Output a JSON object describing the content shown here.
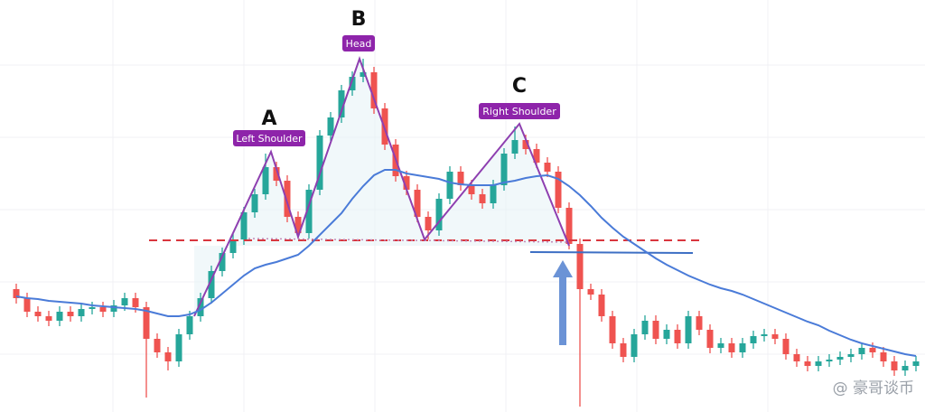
{
  "chart_data": {
    "type": "candlestick",
    "open": [
      136,
      126,
      111,
      106,
      101,
      111,
      106,
      114,
      116,
      111,
      118,
      126,
      116,
      81,
      66,
      56,
      86,
      106,
      126,
      156,
      176,
      191,
      221,
      241,
      271,
      256,
      216,
      198,
      246,
      306,
      326,
      356,
      371,
      376,
      336,
      296,
      261,
      246,
      216,
      201,
      236,
      266,
      251,
      241,
      231,
      251,
      286,
      301,
      291,
      276,
      266,
      226,
      186,
      136,
      130,
      106,
      76,
      61,
      86,
      101,
      81,
      91,
      76,
      106,
      91,
      71,
      76,
      66,
      76,
      84,
      86,
      81,
      64,
      56,
      51,
      56,
      58,
      61,
      64,
      71,
      66,
      56,
      46,
      51
    ],
    "high": [
      142,
      132,
      117,
      112,
      117,
      117,
      120,
      122,
      122,
      124,
      132,
      132,
      122,
      87,
      72,
      92,
      112,
      132,
      162,
      182,
      197,
      227,
      247,
      286,
      277,
      262,
      222,
      252,
      312,
      332,
      362,
      377,
      391,
      382,
      342,
      302,
      267,
      252,
      222,
      242,
      272,
      272,
      257,
      247,
      257,
      292,
      316,
      307,
      297,
      282,
      272,
      232,
      192,
      142,
      136,
      112,
      82,
      92,
      107,
      107,
      97,
      97,
      112,
      112,
      97,
      82,
      82,
      82,
      90,
      92,
      92,
      87,
      70,
      62,
      62,
      64,
      67,
      70,
      77,
      77,
      72,
      62,
      57,
      62
    ],
    "low": [
      120,
      105,
      100,
      95,
      95,
      100,
      100,
      108,
      105,
      105,
      112,
      110,
      16,
      60,
      46,
      50,
      80,
      100,
      120,
      150,
      170,
      185,
      215,
      235,
      250,
      210,
      192,
      192,
      240,
      300,
      320,
      350,
      365,
      330,
      290,
      255,
      240,
      210,
      191,
      195,
      230,
      245,
      235,
      225,
      225,
      245,
      280,
      285,
      270,
      260,
      220,
      180,
      6,
      124,
      100,
      70,
      55,
      55,
      80,
      75,
      75,
      70,
      70,
      85,
      65,
      65,
      60,
      60,
      70,
      78,
      75,
      58,
      50,
      45,
      45,
      50,
      52,
      55,
      58,
      60,
      50,
      40,
      40,
      45
    ],
    "close": [
      126,
      111,
      106,
      101,
      111,
      106,
      114,
      116,
      111,
      118,
      126,
      116,
      81,
      66,
      56,
      86,
      106,
      126,
      156,
      176,
      191,
      221,
      241,
      271,
      256,
      216,
      198,
      246,
      306,
      326,
      356,
      371,
      376,
      336,
      296,
      261,
      246,
      216,
      201,
      236,
      266,
      251,
      241,
      231,
      251,
      286,
      301,
      291,
      276,
      266,
      226,
      186,
      136,
      130,
      106,
      76,
      61,
      86,
      101,
      81,
      91,
      76,
      106,
      91,
      71,
      76,
      66,
      76,
      84,
      86,
      81,
      64,
      56,
      51,
      56,
      58,
      61,
      64,
      71,
      66,
      56,
      46,
      51,
      56
    ],
    "moving_average": {
      "color": "#4a7bd8",
      "values": [
        128,
        126,
        125,
        123,
        122,
        121,
        120,
        118,
        117,
        116,
        115,
        114,
        112,
        109,
        106,
        106,
        108,
        113,
        121,
        131,
        141,
        151,
        159,
        163,
        166,
        170,
        174,
        184,
        196,
        208,
        220,
        236,
        250,
        262,
        268,
        268,
        264,
        262,
        260,
        258,
        254,
        252,
        251,
        251,
        251,
        254,
        256,
        259,
        261,
        262,
        258,
        250,
        240,
        228,
        215,
        204,
        194,
        186,
        178,
        170,
        163,
        157,
        151,
        146,
        141,
        137,
        134,
        130,
        125,
        120,
        115,
        110,
        105,
        100,
        96,
        90,
        85,
        80,
        76,
        73,
        70,
        67,
        64,
        62
      ]
    },
    "up_color": "#26a69a",
    "down_color": "#ef5350",
    "ylim": [
      0,
      456
    ],
    "annotations": [
      {
        "letter": "A",
        "label": "Left Shoulder"
      },
      {
        "letter": "B",
        "label": "Head"
      },
      {
        "letter": "C",
        "label": "Right Shoulder"
      }
    ],
    "watermark": "@ 豪哥谈币"
  }
}
